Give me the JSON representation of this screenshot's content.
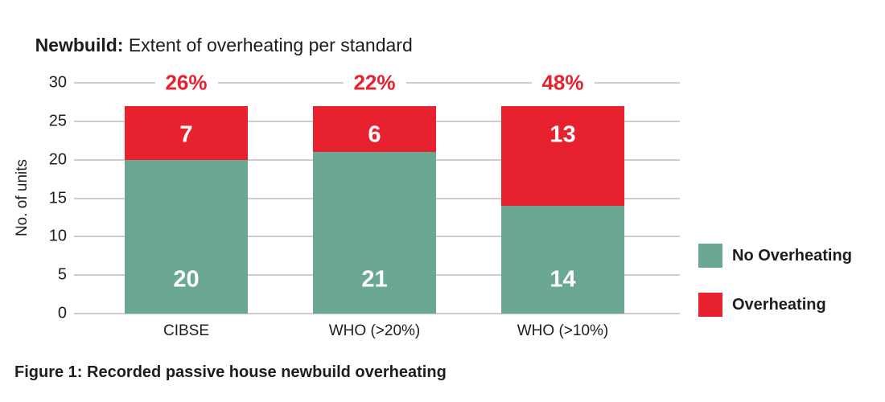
{
  "title": {
    "bold": "Newbuild:",
    "rest": " Extent of overheating per standard"
  },
  "caption": "Figure 1: Recorded passive house newbuild overheating",
  "colors": {
    "green": "#6ba893",
    "red": "#e8212e",
    "grid": "#cdcdcd",
    "text": "#1d1d1b",
    "bar_label": "#ffffff",
    "pct_label": "#e8212e",
    "background": "#ffffff"
  },
  "chart_data": {
    "type": "bar",
    "stacked": true,
    "title": "Newbuild: Extent of overheating per standard",
    "categories": [
      "CIBSE",
      "WHO (>20%)",
      "WHO (>10%)"
    ],
    "series": [
      {
        "name": "No Overheating",
        "color_key": "green",
        "values": [
          20,
          21,
          14
        ]
      },
      {
        "name": "Overheating",
        "color_key": "red",
        "values": [
          7,
          6,
          13
        ]
      }
    ],
    "totals": [
      27,
      27,
      27
    ],
    "overheating_pct": [
      "26%",
      "22%",
      "48%"
    ],
    "xlabel": "",
    "ylabel": "No. of units",
    "ylim": [
      0,
      30
    ],
    "yticks": [
      0,
      5,
      10,
      15,
      20,
      25,
      30
    ],
    "grid": true,
    "legend": [
      {
        "label": "No Overheating",
        "color_key": "green"
      },
      {
        "label": "Overheating",
        "color_key": "red"
      }
    ],
    "legend_position": "right"
  }
}
